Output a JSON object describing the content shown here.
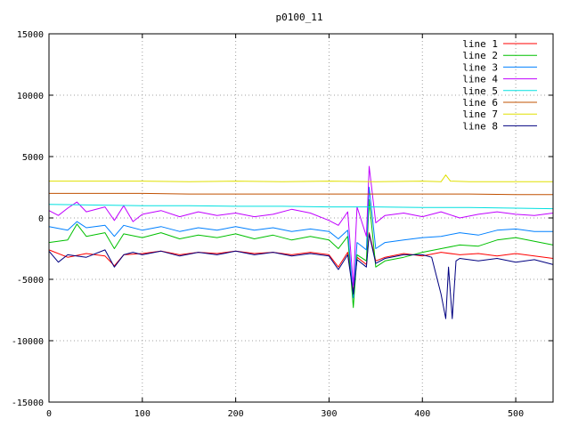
{
  "chart_data": {
    "type": "line",
    "title": "p0100_11",
    "xlabel": "",
    "ylabel": "",
    "xlim": [
      0,
      540
    ],
    "ylim": [
      -15000,
      15000
    ],
    "x_ticks": [
      0,
      100,
      200,
      300,
      400,
      500
    ],
    "y_ticks": [
      -15000,
      -10000,
      -5000,
      0,
      5000,
      10000,
      15000
    ],
    "grid": true,
    "legend_position": "top-right",
    "series": [
      {
        "name": "line 1",
        "color": "#ff0000",
        "x": [
          0,
          20,
          40,
          60,
          70,
          80,
          100,
          120,
          140,
          160,
          180,
          200,
          220,
          240,
          260,
          280,
          300,
          310,
          320,
          326,
          330,
          340,
          343,
          350,
          360,
          380,
          400,
          420,
          440,
          460,
          480,
          500,
          520,
          540
        ],
        "y": [
          -2600,
          -3200,
          -2900,
          -3100,
          -3900,
          -3000,
          -2900,
          -2700,
          -3000,
          -2800,
          -2900,
          -2700,
          -2900,
          -2800,
          -3000,
          -2800,
          -3000,
          -4000,
          -2800,
          -6000,
          -3200,
          -3800,
          -1200,
          -3500,
          -3200,
          -2900,
          -3100,
          -2800,
          -3000,
          -2900,
          -3100,
          -2900,
          -3100,
          -3300
        ]
      },
      {
        "name": "line 2",
        "color": "#00c000",
        "x": [
          0,
          20,
          30,
          40,
          60,
          70,
          80,
          100,
          120,
          140,
          160,
          180,
          200,
          220,
          240,
          260,
          280,
          300,
          310,
          320,
          326,
          330,
          340,
          343,
          350,
          360,
          380,
          400,
          420,
          440,
          460,
          480,
          500,
          520,
          540
        ],
        "y": [
          -2000,
          -1800,
          -500,
          -1500,
          -1200,
          -2500,
          -1300,
          -1600,
          -1200,
          -1700,
          -1400,
          -1600,
          -1300,
          -1700,
          -1400,
          -1800,
          -1500,
          -1800,
          -2500,
          -1500,
          -7300,
          -3000,
          -3500,
          1500,
          -4000,
          -3500,
          -3200,
          -2800,
          -2500,
          -2200,
          -2300,
          -1800,
          -1600,
          -1900,
          -2200
        ]
      },
      {
        "name": "line 3",
        "color": "#0080ff",
        "x": [
          0,
          20,
          30,
          40,
          60,
          70,
          80,
          100,
          120,
          140,
          160,
          180,
          200,
          220,
          240,
          260,
          280,
          300,
          310,
          320,
          326,
          330,
          340,
          343,
          350,
          360,
          380,
          400,
          420,
          440,
          460,
          480,
          500,
          520,
          540
        ],
        "y": [
          -700,
          -1000,
          -300,
          -800,
          -600,
          -1500,
          -600,
          -1000,
          -700,
          -1100,
          -800,
          -1000,
          -700,
          -1000,
          -800,
          -1100,
          -900,
          -1100,
          -1700,
          -1000,
          -6500,
          -2000,
          -2600,
          2500,
          -2500,
          -2000,
          -1800,
          -1600,
          -1500,
          -1200,
          -1400,
          -1000,
          -900,
          -1100,
          -1100
        ]
      },
      {
        "name": "line 4",
        "color": "#c000ff",
        "x": [
          0,
          10,
          20,
          30,
          40,
          60,
          70,
          80,
          90,
          100,
          120,
          140,
          160,
          180,
          200,
          220,
          240,
          260,
          280,
          300,
          310,
          320,
          326,
          330,
          340,
          343,
          350,
          360,
          380,
          400,
          420,
          440,
          460,
          480,
          500,
          520,
          540
        ],
        "y": [
          600,
          200,
          800,
          1300,
          500,
          900,
          -200,
          1000,
          -300,
          300,
          600,
          100,
          500,
          200,
          400,
          100,
          300,
          700,
          400,
          -200,
          -600,
          500,
          -5500,
          900,
          -1500,
          4200,
          -400,
          200,
          400,
          100,
          500,
          0,
          300,
          500,
          300,
          200,
          400
        ]
      },
      {
        "name": "line 5",
        "color": "#00e0e0",
        "x": [
          0,
          50,
          100,
          150,
          200,
          250,
          300,
          350,
          400,
          450,
          500,
          540
        ],
        "y": [
          1100,
          1050,
          1000,
          1000,
          950,
          950,
          900,
          900,
          850,
          850,
          800,
          750
        ]
      },
      {
        "name": "line 6",
        "color": "#c05000",
        "x": [
          0,
          50,
          100,
          150,
          200,
          250,
          300,
          350,
          400,
          450,
          500,
          540
        ],
        "y": [
          2000,
          2000,
          2000,
          1950,
          1950,
          1950,
          1950,
          1950,
          1950,
          1950,
          1900,
          1900
        ]
      },
      {
        "name": "line 7",
        "color": "#e0e000",
        "x": [
          0,
          50,
          100,
          150,
          200,
          250,
          300,
          350,
          400,
          420,
          425,
          430,
          450,
          500,
          540
        ],
        "y": [
          3000,
          3000,
          3000,
          2950,
          3000,
          2950,
          3000,
          2950,
          3000,
          2950,
          3500,
          3000,
          2950,
          2950,
          2950
        ]
      },
      {
        "name": "line 8",
        "color": "#000080",
        "x": [
          0,
          10,
          20,
          40,
          60,
          70,
          80,
          90,
          100,
          120,
          140,
          160,
          180,
          200,
          220,
          240,
          260,
          280,
          300,
          310,
          320,
          326,
          330,
          340,
          343,
          350,
          360,
          380,
          400,
          410,
          420,
          425,
          428,
          432,
          436,
          440,
          460,
          480,
          500,
          520,
          540
        ],
        "y": [
          -2700,
          -3600,
          -3000,
          -3200,
          -2600,
          -4000,
          -3000,
          -2800,
          -3000,
          -2700,
          -3100,
          -2800,
          -3000,
          -2700,
          -3000,
          -2800,
          -3100,
          -2900,
          -3100,
          -4200,
          -3000,
          -6200,
          -3400,
          -4000,
          -1300,
          -3700,
          -3300,
          -3000,
          -3000,
          -3200,
          -6200,
          -8200,
          -4000,
          -8200,
          -3500,
          -3300,
          -3500,
          -3300,
          -3600,
          -3400,
          -3800
        ]
      }
    ]
  }
}
